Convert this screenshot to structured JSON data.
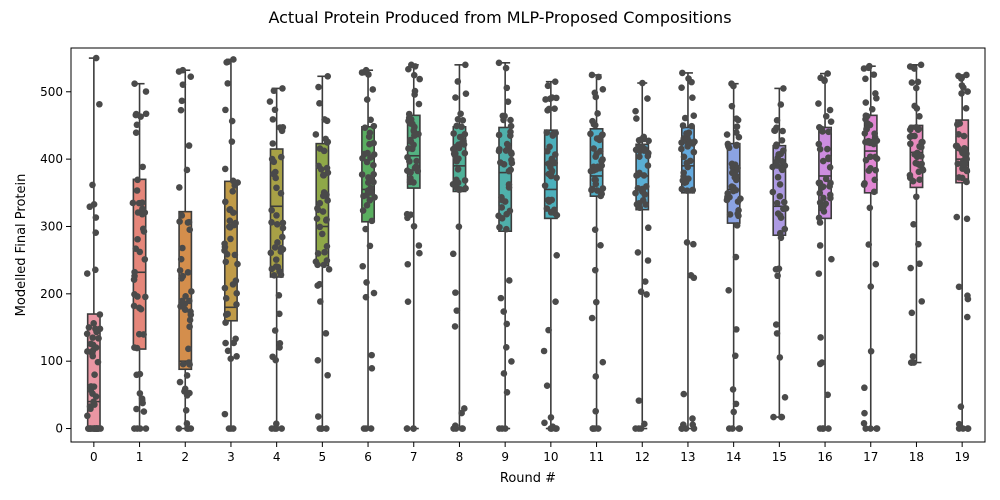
{
  "chart_data": {
    "type": "box",
    "title": "Actual Protein Produced from MLP-Proposed Compositions",
    "xlabel": "Round #",
    "ylabel": "Modelled Final Protein",
    "categories": [
      "0",
      "1",
      "2",
      "3",
      "4",
      "5",
      "6",
      "7",
      "8",
      "9",
      "10",
      "11",
      "12",
      "13",
      "14",
      "15",
      "16",
      "17",
      "18",
      "19"
    ],
    "ylim": [
      -20,
      565
    ],
    "yticks": [
      0,
      100,
      200,
      300,
      400,
      500
    ],
    "grid": false,
    "series": [
      {
        "category": "0",
        "color": "#ea96a3",
        "min": 0,
        "q1": 0,
        "median": 40,
        "q3": 170,
        "max": 550
      },
      {
        "category": "1",
        "color": "#e5867a",
        "min": 0,
        "q1": 118,
        "median": 232,
        "q3": 370,
        "max": 512
      },
      {
        "category": "2",
        "color": "#d48e4c",
        "min": 0,
        "q1": 88,
        "median": 100,
        "q3": 322,
        "max": 532
      },
      {
        "category": "3",
        "color": "#c09b48",
        "min": 0,
        "q1": 160,
        "median": 180,
        "q3": 367,
        "max": 548
      },
      {
        "category": "4",
        "color": "#a8a146",
        "min": 0,
        "q1": 225,
        "median": 330,
        "q3": 415,
        "max": 505
      },
      {
        "category": "5",
        "color": "#8fa848",
        "min": 0,
        "q1": 242,
        "median": 300,
        "q3": 423,
        "max": 523
      },
      {
        "category": "6",
        "color": "#5aae60",
        "min": 0,
        "q1": 307,
        "median": 355,
        "q3": 448,
        "max": 532
      },
      {
        "category": "7",
        "color": "#54b282",
        "min": 0,
        "q1": 357,
        "median": 405,
        "q3": 465,
        "max": 540
      },
      {
        "category": "8",
        "color": "#4eb198",
        "min": 0,
        "q1": 352,
        "median": 390,
        "q3": 448,
        "max": 540
      },
      {
        "category": "9",
        "color": "#4fb0ab",
        "min": 0,
        "q1": 293,
        "median": 380,
        "q3": 447,
        "max": 543
      },
      {
        "category": "10",
        "color": "#4cb0bc",
        "min": 0,
        "q1": 312,
        "median": 355,
        "q3": 443,
        "max": 515
      },
      {
        "category": "11",
        "color": "#52b0c8",
        "min": 0,
        "q1": 345,
        "median": 375,
        "q3": 445,
        "max": 525
      },
      {
        "category": "12",
        "color": "#5aaed4",
        "min": 0,
        "q1": 325,
        "median": 375,
        "q3": 422,
        "max": 513
      },
      {
        "category": "13",
        "color": "#64aadf",
        "min": 0,
        "q1": 350,
        "median": 390,
        "q3": 447,
        "max": 528
      },
      {
        "category": "14",
        "color": "#8ba3e3",
        "min": 0,
        "q1": 305,
        "median": 355,
        "q3": 423,
        "max": 512
      },
      {
        "category": "15",
        "color": "#ad9ae3",
        "min": 17,
        "q1": 287,
        "median": 330,
        "q3": 420,
        "max": 505
      },
      {
        "category": "16",
        "color": "#cc8de0",
        "min": 0,
        "q1": 312,
        "median": 375,
        "q3": 447,
        "max": 527
      },
      {
        "category": "17",
        "color": "#e187d4",
        "min": 0,
        "q1": 350,
        "median": 412,
        "q3": 465,
        "max": 538
      },
      {
        "category": "18",
        "color": "#e98bbf",
        "min": 98,
        "q1": 358,
        "median": 410,
        "q3": 450,
        "max": 540
      },
      {
        "category": "19",
        "color": "#ea8fad",
        "min": 0,
        "q1": 365,
        "median": 400,
        "q3": 458,
        "max": 525
      }
    ]
  }
}
